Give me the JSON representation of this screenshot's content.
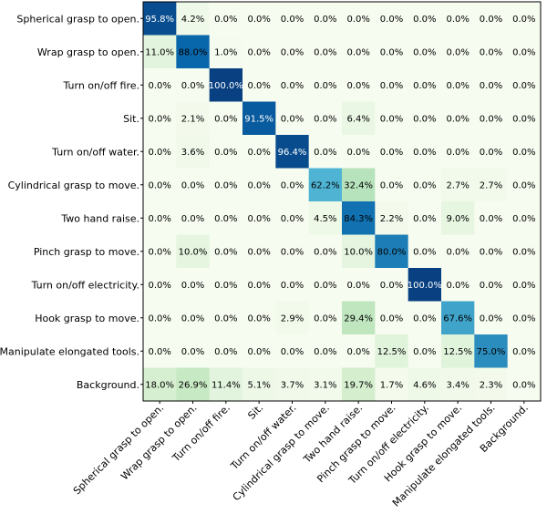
{
  "chart_data": {
    "type": "heatmap",
    "title": "",
    "xlabel": "",
    "ylabel": "",
    "colormap": "GnBu",
    "rows": [
      "Spherical grasp to open.",
      "Wrap grasp to open.",
      "Turn on/off fire.",
      "Sit.",
      "Turn on/off water.",
      "Cylindrical grasp to move.",
      "Two hand raise.",
      "Pinch grasp to move.",
      "Turn on/off electricity.",
      "Hook grasp to move.",
      "Manipulate elongated tools.",
      "Background."
    ],
    "columns": [
      "Spherical grasp to open.",
      "Wrap grasp to open.",
      "Turn on/off fire.",
      "Sit.",
      "Turn on/off water.",
      "Cylindrical grasp to move.",
      "Two hand raise.",
      "Pinch grasp to move.",
      "Turn on/off electricity.",
      "Hook grasp to move.",
      "Manipulate elongated tools.",
      "Background."
    ],
    "values": [
      [
        95.8,
        4.2,
        0.0,
        0.0,
        0.0,
        0.0,
        0.0,
        0.0,
        0.0,
        0.0,
        0.0,
        0.0
      ],
      [
        11.0,
        88.0,
        1.0,
        0.0,
        0.0,
        0.0,
        0.0,
        0.0,
        0.0,
        0.0,
        0.0,
        0.0
      ],
      [
        0.0,
        0.0,
        100.0,
        0.0,
        0.0,
        0.0,
        0.0,
        0.0,
        0.0,
        0.0,
        0.0,
        0.0
      ],
      [
        0.0,
        2.1,
        0.0,
        91.5,
        0.0,
        0.0,
        6.4,
        0.0,
        0.0,
        0.0,
        0.0,
        0.0
      ],
      [
        0.0,
        3.6,
        0.0,
        0.0,
        96.4,
        0.0,
        0.0,
        0.0,
        0.0,
        0.0,
        0.0,
        0.0
      ],
      [
        0.0,
        0.0,
        0.0,
        0.0,
        0.0,
        62.2,
        32.4,
        0.0,
        0.0,
        2.7,
        2.7,
        0.0
      ],
      [
        0.0,
        0.0,
        0.0,
        0.0,
        0.0,
        4.5,
        84.3,
        2.2,
        0.0,
        9.0,
        0.0,
        0.0
      ],
      [
        0.0,
        10.0,
        0.0,
        0.0,
        0.0,
        0.0,
        10.0,
        80.0,
        0.0,
        0.0,
        0.0,
        0.0
      ],
      [
        0.0,
        0.0,
        0.0,
        0.0,
        0.0,
        0.0,
        0.0,
        0.0,
        100.0,
        0.0,
        0.0,
        0.0
      ],
      [
        0.0,
        0.0,
        0.0,
        0.0,
        2.9,
        0.0,
        29.4,
        0.0,
        0.0,
        67.6,
        0.0,
        0.0
      ],
      [
        0.0,
        0.0,
        0.0,
        0.0,
        0.0,
        0.0,
        0.0,
        12.5,
        0.0,
        12.5,
        75.0,
        0.0
      ],
      [
        18.0,
        26.9,
        11.4,
        5.1,
        3.7,
        3.1,
        19.7,
        1.7,
        4.6,
        3.4,
        2.3,
        0.0
      ]
    ],
    "value_format": "percent_1dp",
    "grid": false,
    "legend": "none"
  }
}
